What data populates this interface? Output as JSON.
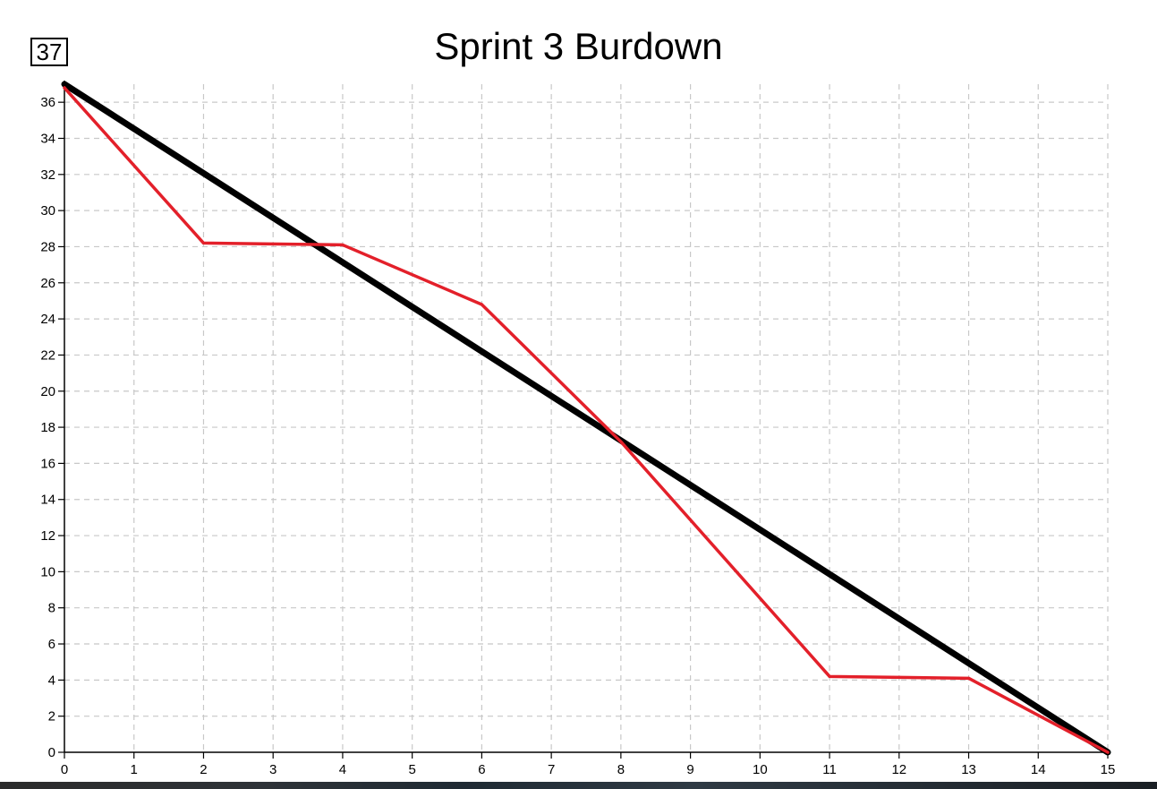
{
  "chart_data": {
    "type": "line",
    "title": "Sprint 3 Burdown",
    "y_max_box": "37",
    "xlabel": "",
    "ylabel": "",
    "xlim": [
      0,
      15
    ],
    "ylim": [
      0,
      37
    ],
    "x_ticks": [
      "0",
      "1",
      "2",
      "3",
      "4",
      "5",
      "6",
      "7",
      "8",
      "9",
      "10",
      "11",
      "12",
      "13",
      "14",
      "15"
    ],
    "y_ticks": [
      "0",
      "2",
      "4",
      "6",
      "8",
      "10",
      "12",
      "14",
      "16",
      "18",
      "20",
      "22",
      "24",
      "26",
      "28",
      "30",
      "32",
      "34",
      "36"
    ],
    "grid": true,
    "series": [
      {
        "color": "#000000",
        "x": [
          0,
          15
        ],
        "y": [
          37,
          0
        ]
      },
      {
        "color": "#e3202a",
        "x": [
          0,
          2,
          4,
          6,
          8,
          11,
          13,
          15
        ],
        "y": [
          36.8,
          28.2,
          28.1,
          24.8,
          17.2,
          4.2,
          4.1,
          0
        ]
      }
    ]
  }
}
